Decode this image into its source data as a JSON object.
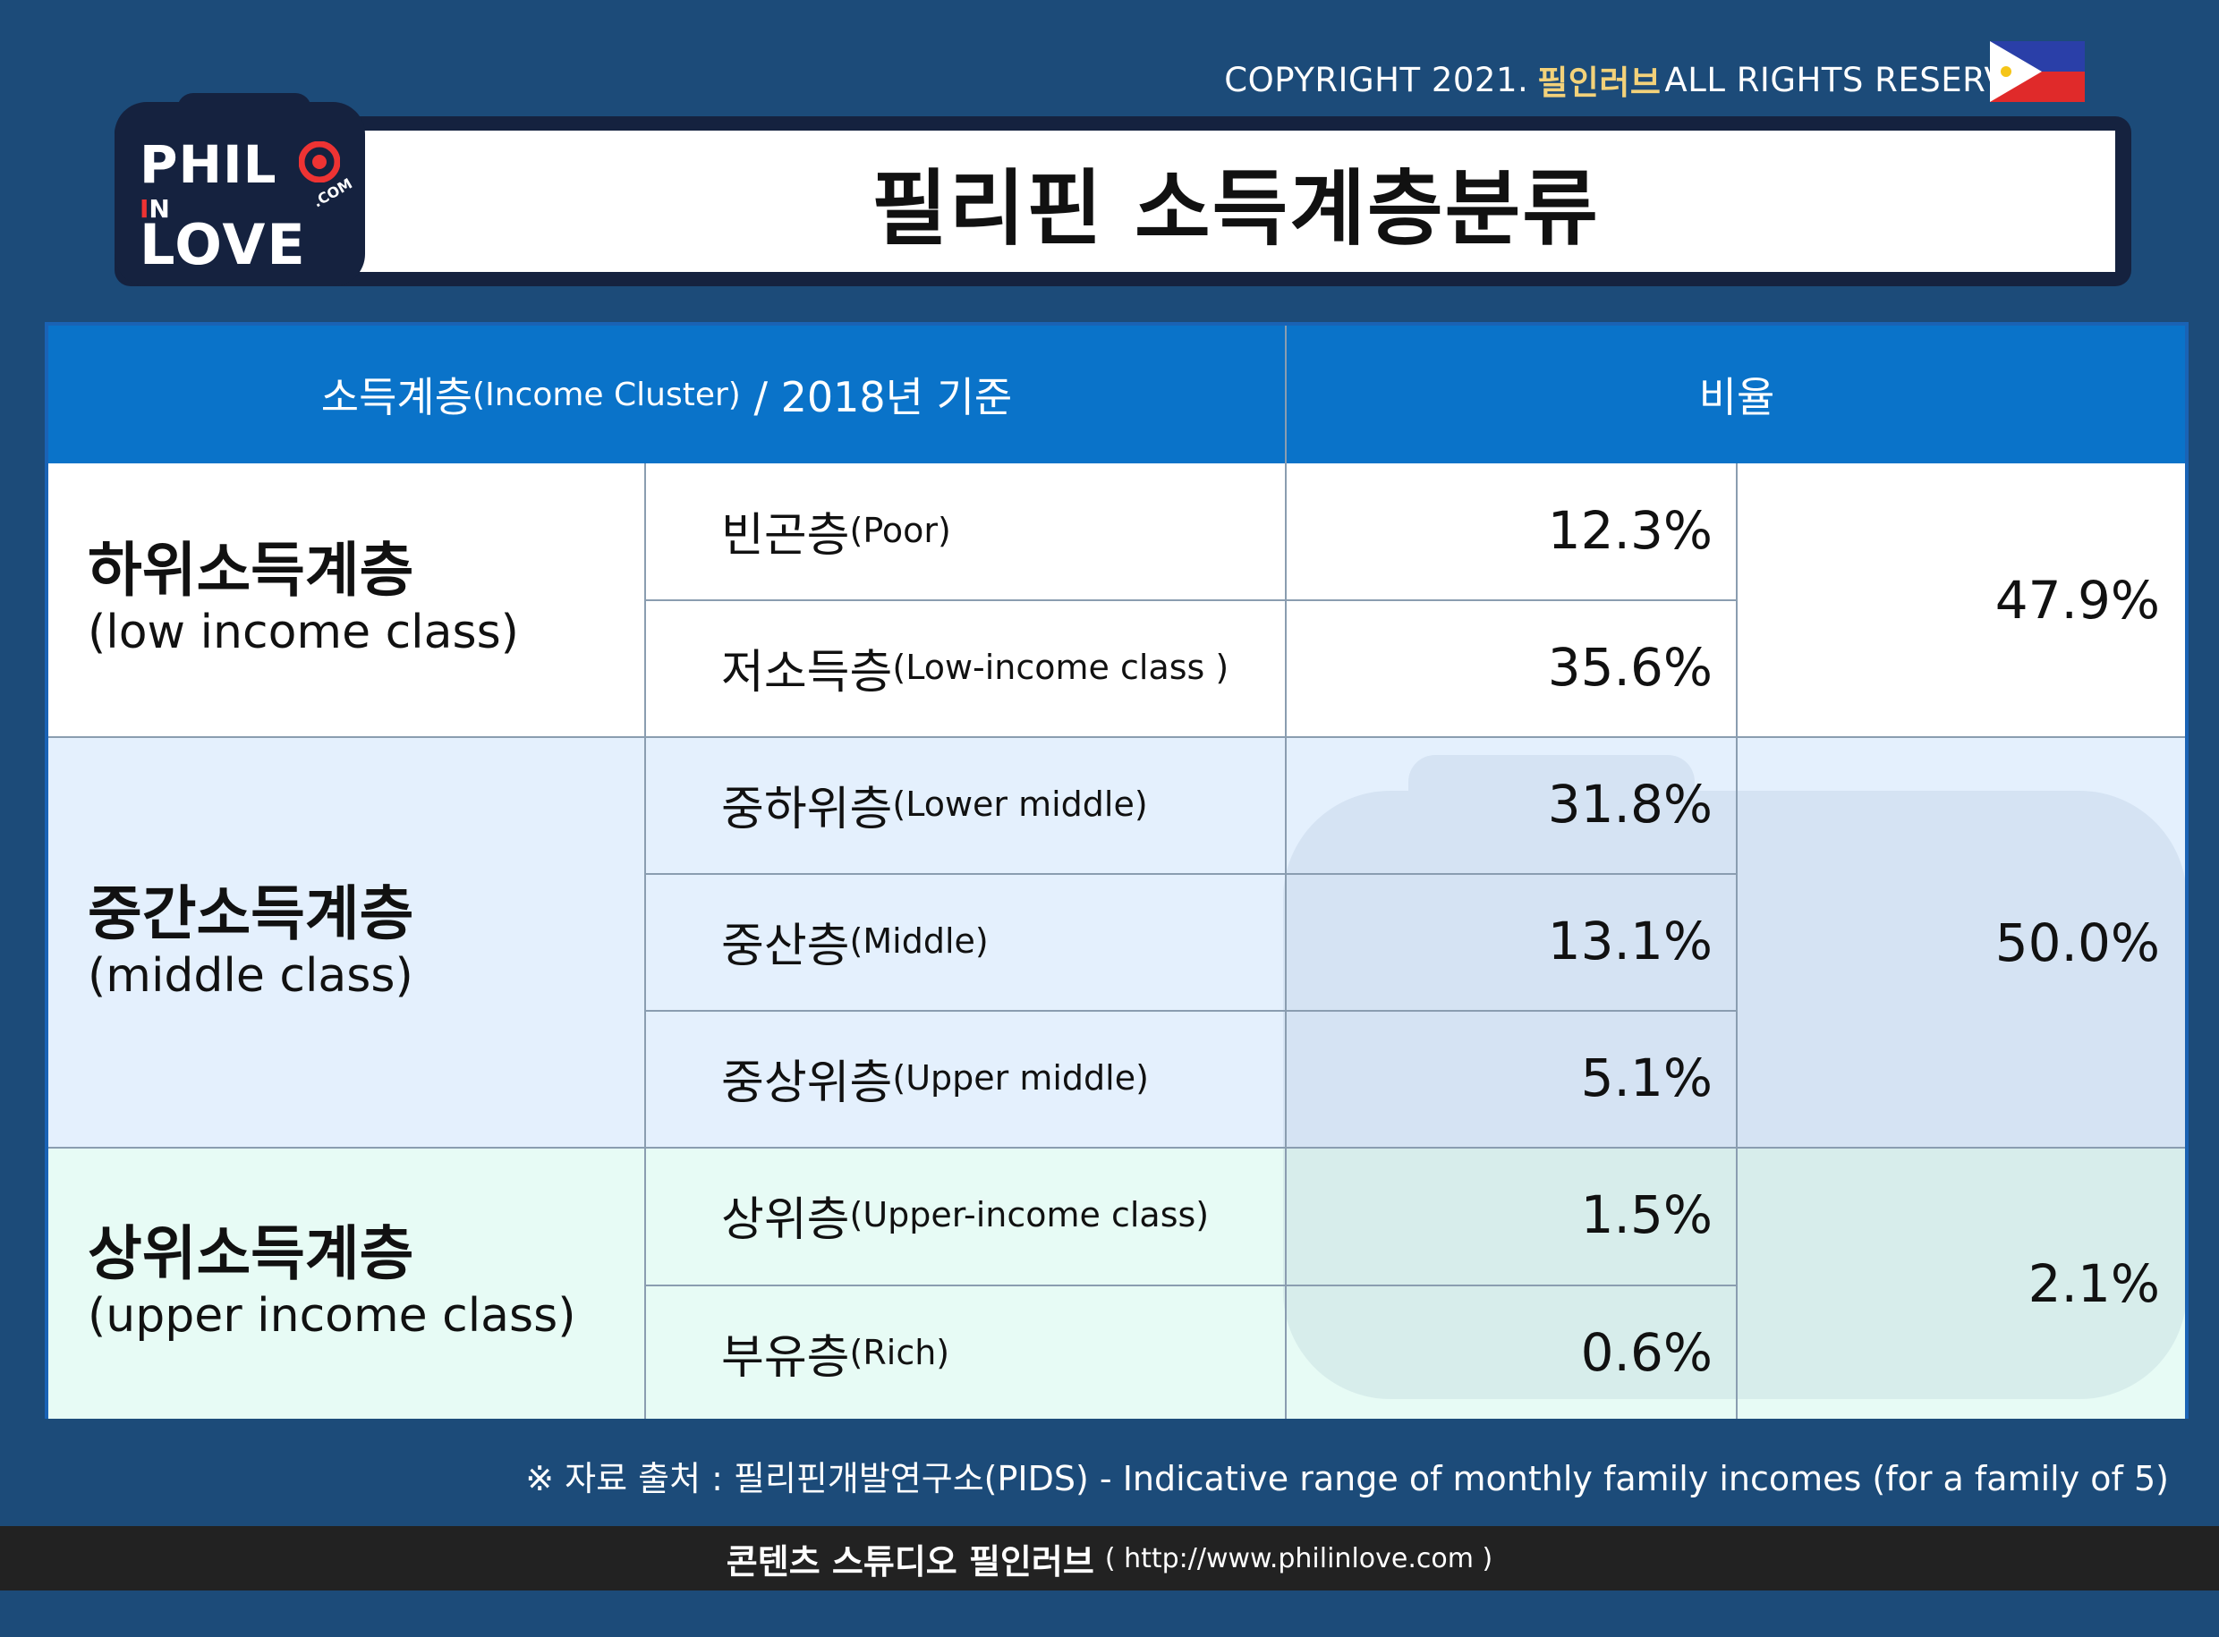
{
  "header": {
    "copyright_prefix": "COPYRIGHT 2021.",
    "copyright_brand": "필인러브",
    "copyright_suffix": "ALL RIGHTS RESERVED",
    "title": "필리핀 소득계층분류"
  },
  "logo": {
    "line1": "PHIL",
    "line2a": "I",
    "line2b": "N",
    "line3": "LOVE",
    "com": ".COM"
  },
  "table": {
    "col1_header_ko": "소득계층",
    "col1_header_en": "(Income Cluster)",
    "col1_header_suffix": " / 2018년 기준",
    "col2_header": "비율",
    "groups": [
      {
        "ko": "하위소득계층",
        "en": "(low income class)",
        "total": "47.9%",
        "rows": [
          {
            "ko": "빈곤층",
            "en": "(Poor)",
            "pct": "12.3%"
          },
          {
            "ko": "저소득층",
            "en": "(Low-income class )",
            "pct": "35.6%"
          }
        ]
      },
      {
        "ko": "중간소득계층",
        "en": "(middle class)",
        "total": "50.0%",
        "rows": [
          {
            "ko": "중하위층",
            "en": "(Lower middle)",
            "pct": "31.8%"
          },
          {
            "ko": "중산층",
            "en": "(Middle)",
            "pct": "13.1%"
          },
          {
            "ko": "중상위층",
            "en": "(Upper middle)",
            "pct": "5.1%"
          }
        ]
      },
      {
        "ko": "상위소득계층",
        "en": "(upper income class)",
        "total": "2.1%",
        "rows": [
          {
            "ko": "상위층",
            "en": "(Upper-income class)",
            "pct": "1.5%"
          },
          {
            "ko": "부유층",
            "en": "(Rich)",
            "pct": "0.6%"
          }
        ]
      }
    ]
  },
  "source": "※ 자료 출처 : 필리핀개발연구소(PIDS) -  Indicative range of monthly family incomes (for a family of 5)",
  "footer": {
    "main": "콘텐츠 스튜디오 필인러브",
    "url": "( http://www.philinlove.com )"
  }
}
